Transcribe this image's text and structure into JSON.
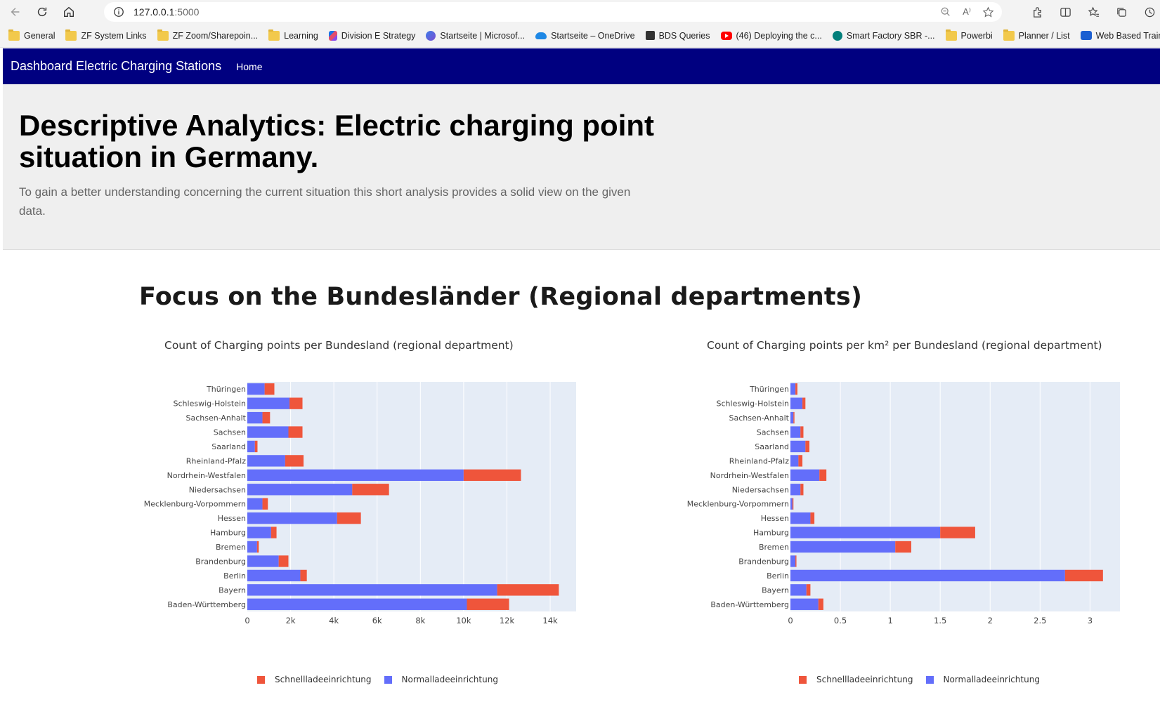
{
  "browser": {
    "url_host": "127.0.0.1",
    "url_port": ":5000",
    "bookmarks": [
      {
        "label": "General",
        "icon": "folder-icon"
      },
      {
        "label": "ZF System Links",
        "icon": "folder-icon"
      },
      {
        "label": "ZF Zoom/Sharepoin...",
        "icon": "folder-icon"
      },
      {
        "label": "Learning",
        "icon": "folder-icon"
      },
      {
        "label": "Division E Strategy",
        "icon": "multicolor-icon"
      },
      {
        "label": "Startseite | Microsof...",
        "icon": "microsoft-icon"
      },
      {
        "label": "Startseite – OneDrive",
        "icon": "onedrive-icon"
      },
      {
        "label": "BDS Queries",
        "icon": "bds-icon"
      },
      {
        "label": "(46) Deploying the c...",
        "icon": "youtube-icon"
      },
      {
        "label": "Smart Factory SBR -...",
        "icon": "sharepoint-icon"
      },
      {
        "label": "Powerbi",
        "icon": "folder-icon"
      },
      {
        "label": "Planner / List",
        "icon": "folder-icon"
      },
      {
        "label": "Web Based Training...",
        "icon": "training-icon"
      }
    ]
  },
  "navbar": {
    "brand": "Dashboard Electric Charging Stations",
    "home": "Home",
    "color": "#000080"
  },
  "hero": {
    "title": "Descriptive Analytics: Electric charging point situation in Germany.",
    "lead": "To gain a better understanding concerning the current situation this short analysis provides a solid view on the given data."
  },
  "section": {
    "title": "Focus on the Bundesländer (Regional departments)"
  },
  "chart_data": [
    {
      "type": "bar",
      "orientation": "horizontal",
      "stacked": true,
      "title": "Count of Charging points per Bundesland (regional department)",
      "categories": [
        "Thüringen",
        "Schleswig-Holstein",
        "Sachsen-Anhalt",
        "Sachsen",
        "Saarland",
        "Rheinland-Pfalz",
        "Nordrhein-Westfalen",
        "Niedersachsen",
        "Mecklenburg-Vorpommern",
        "Hessen",
        "Hamburg",
        "Bremen",
        "Brandenburg",
        "Berlin",
        "Bayern",
        "Baden-Württemberg"
      ],
      "series": [
        {
          "name": "Normalladeeinrichtung",
          "color": "#636efa",
          "values": [
            800,
            1950,
            700,
            1900,
            350,
            1750,
            10000,
            4850,
            700,
            4150,
            1100,
            450,
            1450,
            2450,
            11550,
            10150
          ]
        },
        {
          "name": "Schnellladeeinrichtung",
          "color": "#ef553b",
          "values": [
            450,
            600,
            350,
            650,
            120,
            850,
            2650,
            1700,
            250,
            1100,
            250,
            80,
            450,
            300,
            2850,
            1950
          ]
        }
      ],
      "xlim": [
        0,
        15200
      ],
      "xticks": [
        0,
        2000,
        4000,
        6000,
        8000,
        10000,
        12000,
        14000
      ],
      "xtick_labels": [
        "0",
        "2k",
        "4k",
        "6k",
        "8k",
        "10k",
        "12k",
        "14k"
      ],
      "legend_order": [
        "Schnellladeeinrichtung",
        "Normalladeeinrichtung"
      ],
      "legend_position": "bottom",
      "grid": true,
      "xlabel": "",
      "ylabel": ""
    },
    {
      "type": "bar",
      "orientation": "horizontal",
      "stacked": true,
      "title": "Count of Charging points per km² per Bundesland (regional department)",
      "categories": [
        "Thüringen",
        "Schleswig-Holstein",
        "Sachsen-Anhalt",
        "Sachsen",
        "Saarland",
        "Rheinland-Pfalz",
        "Nordrhein-Westfalen",
        "Niedersachsen",
        "Mecklenburg-Vorpommern",
        "Hessen",
        "Hamburg",
        "Bremen",
        "Brandenburg",
        "Berlin",
        "Bayern",
        "Baden-Württemberg"
      ],
      "series": [
        {
          "name": "Normalladeeinrichtung",
          "color": "#636efa",
          "values": [
            0.05,
            0.12,
            0.03,
            0.1,
            0.15,
            0.08,
            0.29,
            0.1,
            0.02,
            0.2,
            1.5,
            1.05,
            0.05,
            2.75,
            0.16,
            0.28
          ]
        },
        {
          "name": "Schnellladeeinrichtung",
          "color": "#ef553b",
          "values": [
            0.02,
            0.03,
            0.01,
            0.03,
            0.04,
            0.04,
            0.07,
            0.03,
            0.01,
            0.04,
            0.35,
            0.16,
            0.01,
            0.38,
            0.04,
            0.05
          ]
        }
      ],
      "xlim": [
        0,
        3.3
      ],
      "xticks": [
        0,
        0.5,
        1,
        1.5,
        2,
        2.5,
        3
      ],
      "xtick_labels": [
        "0",
        "0.5",
        "1",
        "1.5",
        "2",
        "2.5",
        "3"
      ],
      "legend_order": [
        "Schnellladeeinrichtung",
        "Normalladeeinrichtung"
      ],
      "legend_position": "bottom",
      "grid": true,
      "xlabel": "",
      "ylabel": ""
    }
  ]
}
